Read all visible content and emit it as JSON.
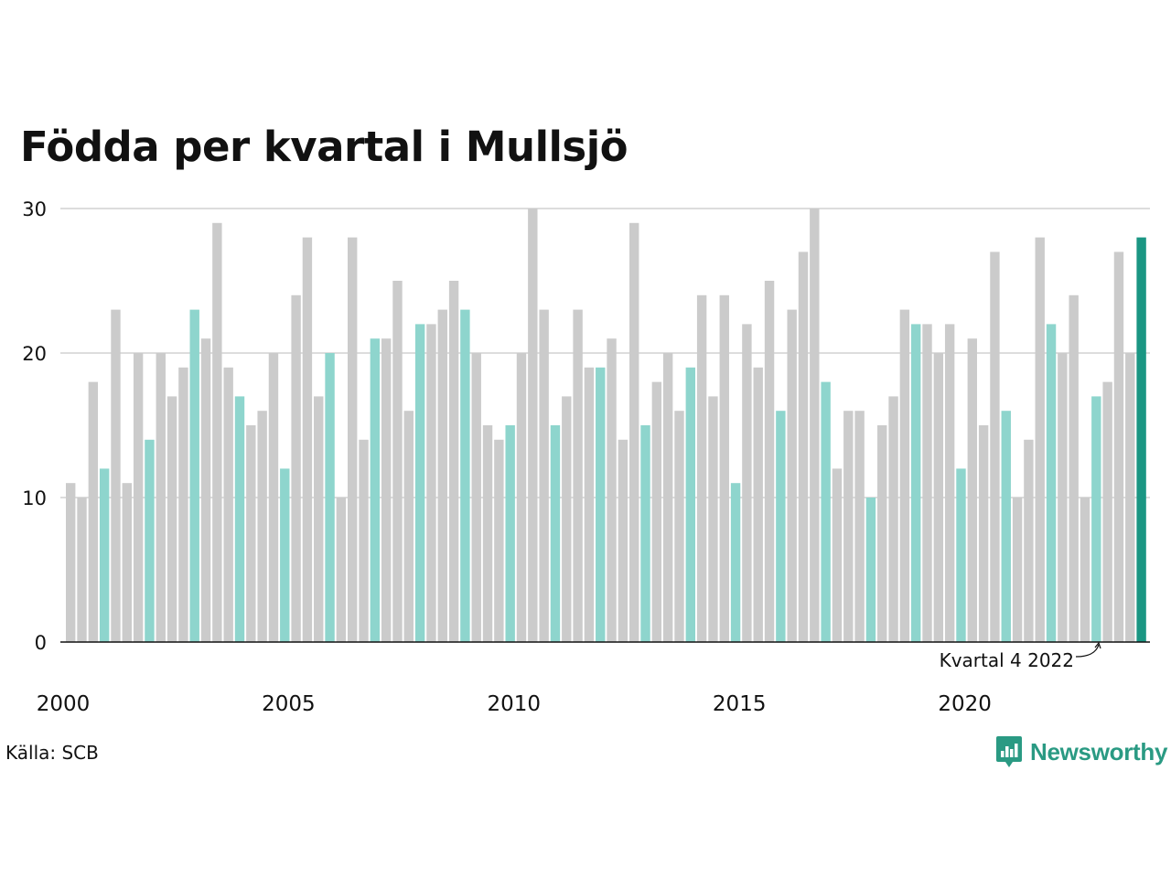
{
  "title": "Födda per kvartal i Mullsjö",
  "source": "Källa: SCB",
  "brand": "Newsworthy",
  "annotation": "Kvartal 4 2022",
  "colors": {
    "default": "#cbcbcb",
    "q4": "#8ed5cd",
    "latest": "#1a9683",
    "grid": "#dddddd",
    "axis": "#111111"
  },
  "icon": "newsworthy-logo-icon",
  "chart_data": {
    "type": "bar",
    "title": "Födda per kvartal i Mullsjö",
    "xlabel": "",
    "ylabel": "",
    "ylim": [
      0,
      30
    ],
    "y_ticks": [
      0,
      10,
      20,
      30
    ],
    "x_ticks": [
      {
        "year": 2000,
        "label": "2000"
      },
      {
        "year": 2005,
        "label": "2005"
      },
      {
        "year": 2010,
        "label": "2010"
      },
      {
        "year": 2015,
        "label": "2015"
      },
      {
        "year": 2020,
        "label": "2020"
      }
    ],
    "start_year": 2000,
    "grid": true,
    "highlight": "Kvartal 4 2022",
    "values": [
      11,
      10,
      18,
      12,
      23,
      11,
      20,
      14,
      20,
      17,
      19,
      23,
      21,
      29,
      19,
      17,
      15,
      16,
      20,
      12,
      24,
      28,
      17,
      20,
      10,
      28,
      14,
      21,
      21,
      25,
      16,
      22,
      22,
      23,
      25,
      23,
      20,
      15,
      14,
      15,
      20,
      30,
      23,
      15,
      17,
      23,
      19,
      19,
      21,
      14,
      29,
      15,
      18,
      20,
      16,
      19,
      24,
      17,
      24,
      11,
      22,
      19,
      25,
      16,
      23,
      27,
      30,
      18,
      12,
      16,
      16,
      10,
      15,
      17,
      23,
      22,
      22,
      20,
      22,
      12,
      21,
      15,
      27,
      16,
      10,
      14,
      28,
      22,
      20,
      24,
      10,
      17,
      18,
      27,
      20,
      28
    ]
  }
}
